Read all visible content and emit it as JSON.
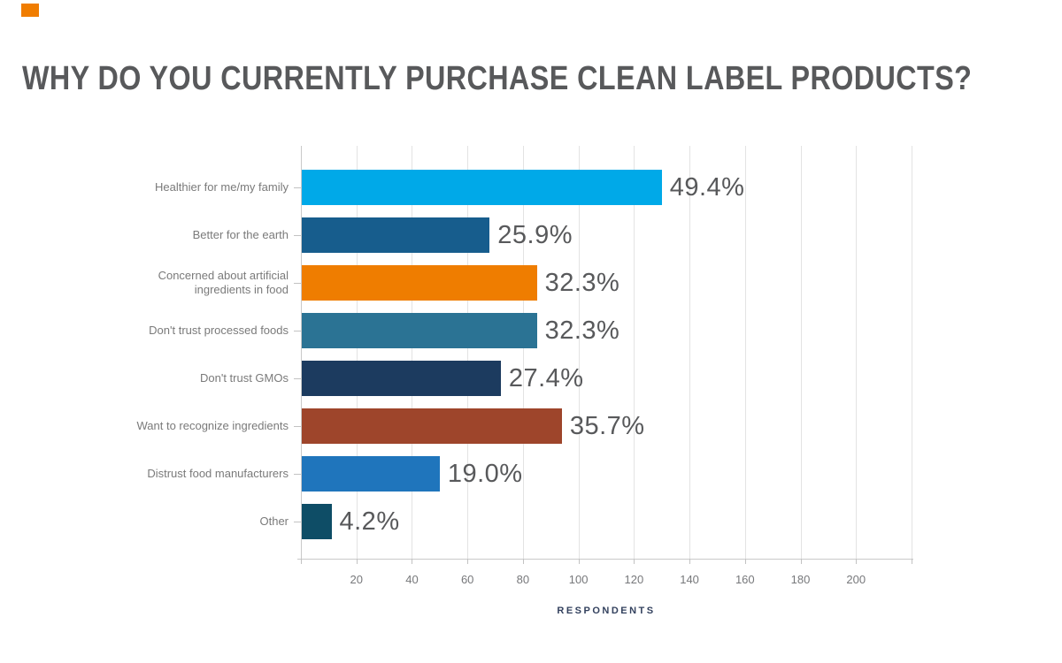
{
  "accent": {
    "color": "#F07D00"
  },
  "title": {
    "text": "WHY DO YOU CURRENTLY PURCHASE CLEAN LABEL PRODUCTS?",
    "color": "#58595B"
  },
  "colors": {
    "title_text": "#58595B",
    "value_label_text": "#58595B",
    "category_label_text": "#7A7A7A",
    "tick_label_text": "#77787B",
    "axis_title_text": "#33415E",
    "gridline": "#e3e3e3",
    "axis_line": "#c9c9c9"
  },
  "chart_data": {
    "type": "bar",
    "orientation": "horizontal",
    "title": "WHY DO YOU CURRENTLY PURCHASE CLEAN LABEL PRODUCTS?",
    "categories": [
      "Healthier for me/my family",
      "Better for the earth",
      "Concerned about artificial ingredients in food",
      "Don't trust processed foods",
      "Don't trust GMOs",
      "Want to recognize ingredients",
      "Distrust food manufacturers",
      "Other"
    ],
    "series": [
      {
        "name": "Respondents",
        "values": [
          130,
          68,
          85,
          85,
          72,
          94,
          50,
          11
        ]
      }
    ],
    "bar_labels": [
      "49.4%",
      "25.9%",
      "32.3%",
      "32.3%",
      "27.4%",
      "35.7%",
      "19.0%",
      "4.2%"
    ],
    "percent_values": [
      49.4,
      25.9,
      32.3,
      32.3,
      27.4,
      35.7,
      19.0,
      4.2
    ],
    "bar_colors": [
      "#00A9E8",
      "#175D8D",
      "#EF7D00",
      "#2B7394",
      "#1C3B5F",
      "#9E452B",
      "#1F75BC",
      "#0E4D66"
    ],
    "xlabel": "RESPONDENTS",
    "ylabel": "",
    "x_ticks": [
      20,
      40,
      60,
      80,
      100,
      120,
      140,
      160,
      180,
      200
    ],
    "xlim": [
      0,
      220
    ],
    "grid": "vertical",
    "legend": false
  }
}
